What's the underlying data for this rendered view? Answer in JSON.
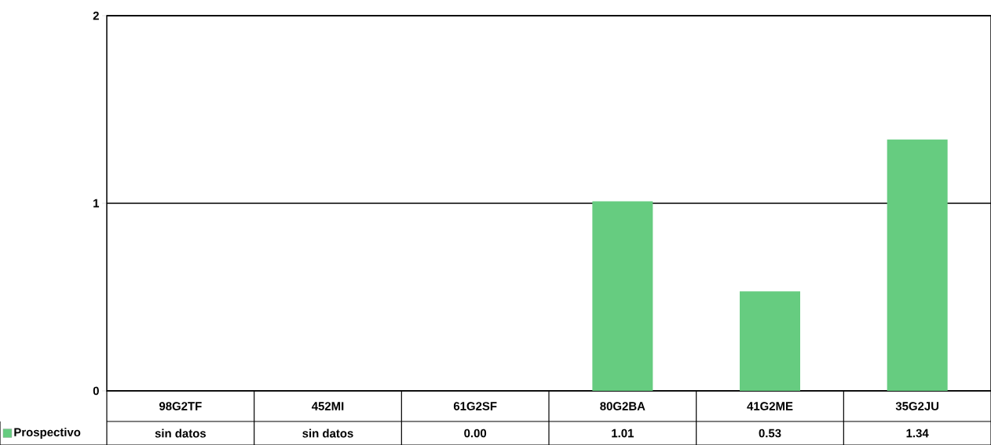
{
  "chart_data": {
    "type": "bar",
    "categories": [
      "98G2TF",
      "452MI",
      "61G2SF",
      "80G2BA",
      "41G2ME",
      "35G2JU"
    ],
    "series": [
      {
        "name": "Prospectivo",
        "color": "#66cc80",
        "values": [
          null,
          null,
          0.0,
          1.01,
          0.53,
          1.34
        ]
      }
    ],
    "value_labels": [
      "sin datos",
      "sin datos",
      "0.00",
      "1.01",
      "0.53",
      "1.34"
    ],
    "ylim": [
      0,
      2
    ],
    "yticks": [
      0,
      1,
      2
    ],
    "grid": "y",
    "legend": "bottom left"
  }
}
